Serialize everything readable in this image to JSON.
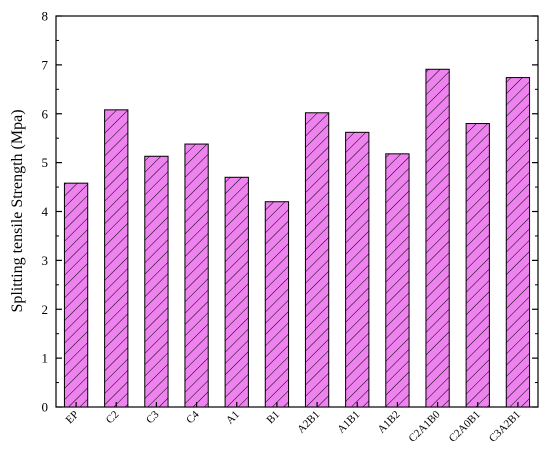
{
  "chart_data": {
    "type": "bar",
    "title": "",
    "xlabel": "",
    "ylabel": "Splitting tensile Strength (Mpa)",
    "ylim": [
      0,
      8
    ],
    "yticks": [
      0,
      1,
      2,
      3,
      4,
      5,
      6,
      7,
      8
    ],
    "grid": false,
    "legend": "none",
    "categories": [
      "EP",
      "C2",
      "C3",
      "C4",
      "A1",
      "B1",
      "A2B1",
      "A1B1",
      "A1B2",
      "C2A1B0",
      "C2A0B1",
      "C3A2B1"
    ],
    "values": [
      4.58,
      6.08,
      5.13,
      5.38,
      4.7,
      4.2,
      6.02,
      5.62,
      5.18,
      6.91,
      5.8,
      6.74
    ],
    "bar_color": "#ee82ee",
    "hatch": "diagonal"
  }
}
